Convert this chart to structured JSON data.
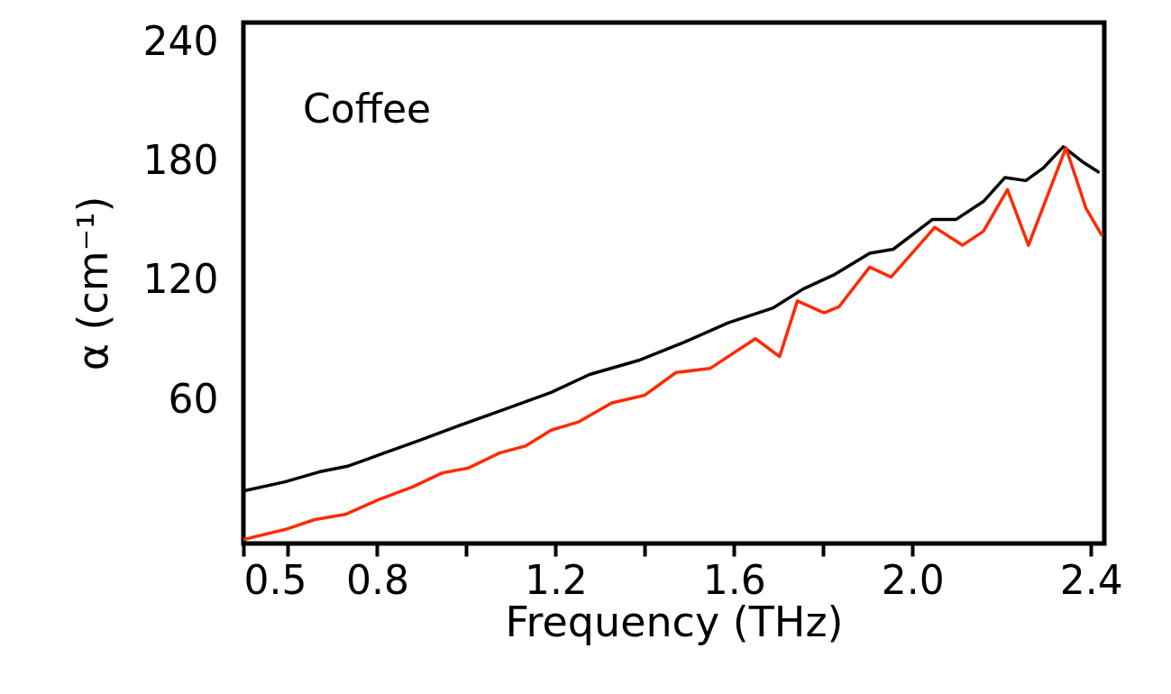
{
  "chart_data": {
    "type": "line",
    "xlabel": "Frequency (THz)",
    "ylabel": "α (cm⁻¹)",
    "annotations": [
      "Coffee"
    ],
    "xlim": [
      0.5,
      2.43
    ],
    "ylim": [
      -12,
      250
    ],
    "xticks": [
      0.5,
      {
        "value": 0.6,
        "label": null
      },
      0.8,
      {
        "value": 1.0,
        "label": null
      },
      1.2,
      {
        "value": 1.4,
        "label": null
      },
      1.6,
      {
        "value": 1.8,
        "label": null
      },
      "2.0",
      2.4
    ],
    "yticks": [
      60,
      120,
      180,
      240
    ],
    "grid": false,
    "line_style": "solid",
    "marker": "none",
    "series": [
      {
        "color": "#000000",
        "x": [
          0.5,
          0.593,
          0.67,
          0.736,
          0.81,
          0.896,
          0.98,
          1.08,
          1.19,
          1.276,
          1.385,
          1.486,
          1.587,
          1.688,
          1.755,
          1.823,
          1.904,
          1.957,
          2.045,
          2.098,
          2.159,
          2.207,
          2.254,
          2.294,
          2.338,
          2.381,
          2.419
        ],
        "values": [
          14.4,
          19,
          24,
          27,
          33,
          40,
          47,
          55,
          64,
          73,
          80,
          89,
          99,
          106.5,
          116,
          123,
          134,
          136,
          151,
          151,
          160,
          172,
          170.5,
          177,
          187.5,
          180,
          174.5
        ]
      },
      {
        "color": "#ff2a00",
        "x": [
          0.5,
          0.593,
          0.66,
          0.728,
          0.803,
          0.88,
          0.946,
          1.005,
          1.074,
          1.132,
          1.19,
          1.25,
          1.326,
          1.4,
          1.47,
          1.546,
          1.648,
          1.702,
          1.742,
          1.802,
          1.835,
          1.904,
          1.952,
          2.05,
          2.112,
          2.159,
          2.213,
          2.26,
          2.344,
          2.389,
          2.425
        ],
        "values": [
          -10,
          -5,
          0,
          2.6,
          10,
          16.5,
          23.5,
          26,
          33.5,
          37,
          45,
          49,
          58.7,
          62.6,
          74,
          76,
          91,
          82,
          110,
          104,
          107,
          127,
          122,
          147,
          138,
          145,
          166,
          138,
          187,
          156.6,
          142.7
        ]
      }
    ]
  }
}
